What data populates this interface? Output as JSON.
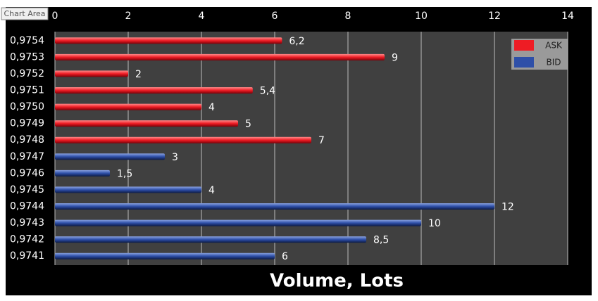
{
  "chart_data": {
    "type": "bar",
    "orientation": "horizontal",
    "annotation": "Chart Area",
    "x_label": "Volume, Lots",
    "categories": [
      "0,9754",
      "0,9753",
      "0,9752",
      "0,9751",
      "0,9750",
      "0,9749",
      "0,9748",
      "0,9747",
      "0,9746",
      "0,9745",
      "0,9744",
      "0,9743",
      "0,9742",
      "0,9741"
    ],
    "series": [
      {
        "name": "ASK",
        "color": "#ee1c24",
        "values": [
          6.2,
          9,
          2,
          5.4,
          4,
          5,
          7,
          null,
          null,
          null,
          null,
          null,
          null,
          null
        ],
        "value_labels": [
          "6,2",
          "9",
          "2",
          "5,4",
          "4",
          "5",
          "7",
          null,
          null,
          null,
          null,
          null,
          null,
          null
        ]
      },
      {
        "name": "BID",
        "color": "#2e4fa8",
        "values": [
          null,
          null,
          null,
          null,
          null,
          null,
          null,
          3,
          1.5,
          4,
          12,
          10,
          8.5,
          6
        ],
        "value_labels": [
          null,
          null,
          null,
          null,
          null,
          null,
          null,
          "3",
          "1,5",
          "4",
          "12",
          "10",
          "8,5",
          "6"
        ]
      }
    ],
    "xlim": [
      0,
      14
    ],
    "xticks": [
      0,
      2,
      4,
      6,
      8,
      10,
      12,
      14
    ],
    "grid": true,
    "legend": "top-right"
  }
}
